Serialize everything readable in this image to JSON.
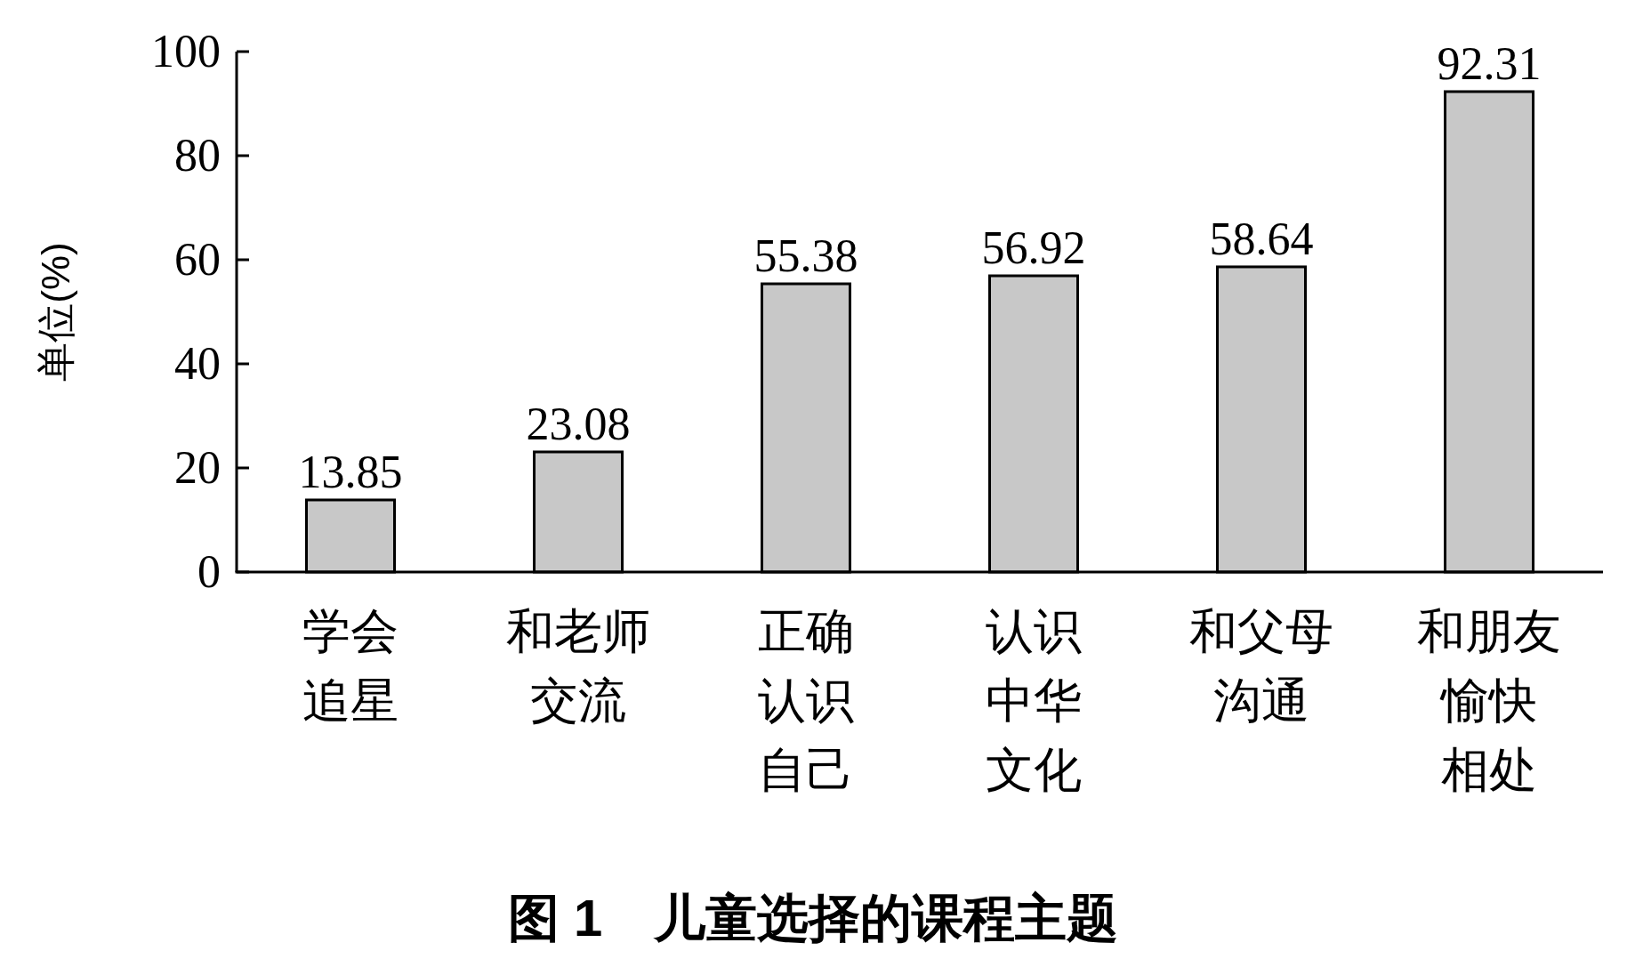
{
  "chart_data": {
    "type": "bar",
    "title": "**图 1　儿童选择的课程主题**",
    "ylabel": "单位(%)",
    "categories": [
      "学会追星",
      "和老师交流",
      "正确认识自己",
      "认识中华文化",
      "和父母沟通",
      "和朋友愉快相处"
    ],
    "values": [
      13.85,
      23.08,
      55.38,
      56.92,
      58.64,
      92.31
    ],
    "color": "#c8c8c8",
    "ylim": [
      0,
      100
    ],
    "yticks": [
      0,
      20,
      40,
      60,
      80,
      100
    ],
    "data_labels": true,
    "grid": false
  }
}
